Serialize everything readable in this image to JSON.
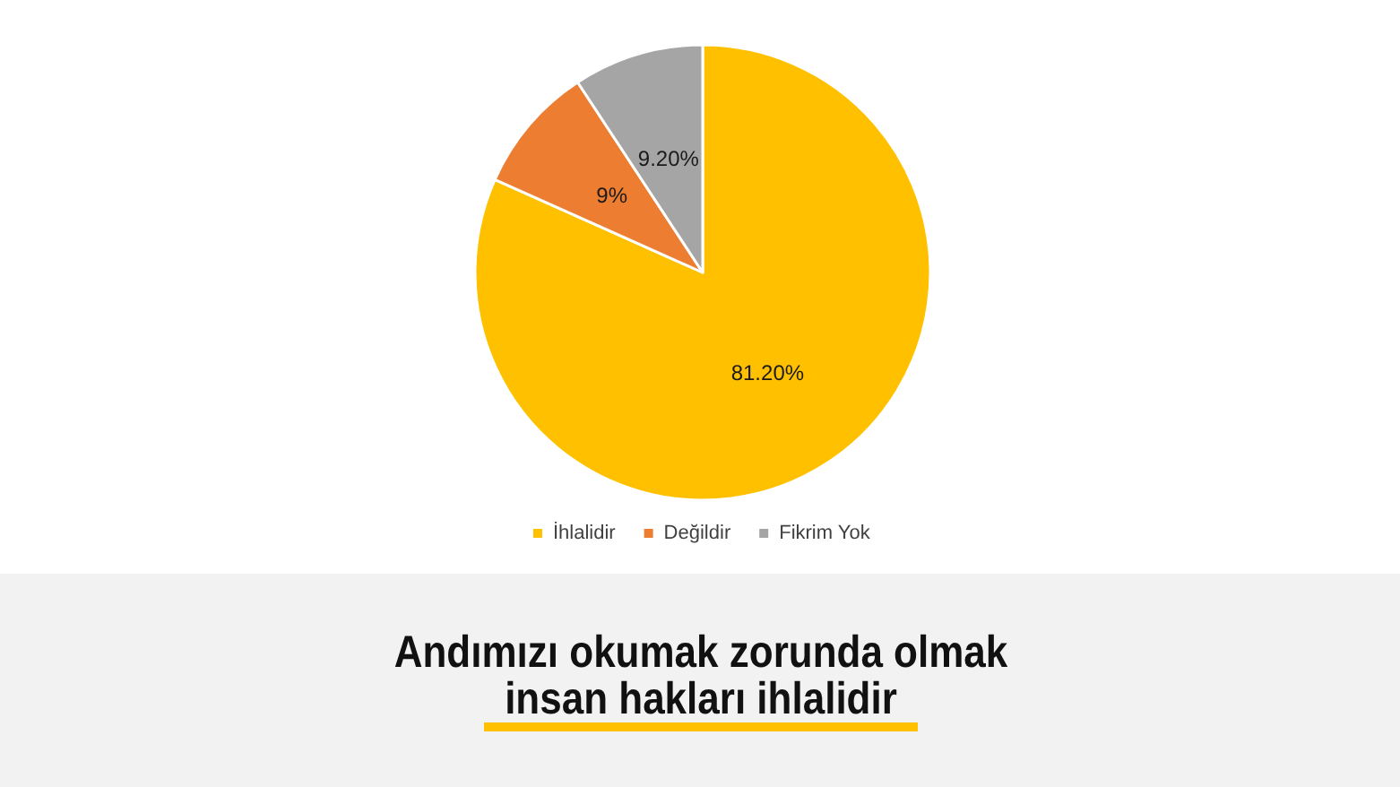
{
  "chart_data": {
    "type": "pie",
    "title": "Andımızı okumak zorunda olmak insan hakları ihlalidir",
    "categories": [
      "İhlalidir",
      "Değildir",
      "Fikrim Yok"
    ],
    "values": [
      81.2,
      9,
      9.2
    ],
    "colors": [
      "#ffc000",
      "#ed7d31",
      "#a5a5a5"
    ],
    "value_labels": [
      "81.20%",
      "9%",
      "9.20%"
    ],
    "legend": "bottom"
  }
}
